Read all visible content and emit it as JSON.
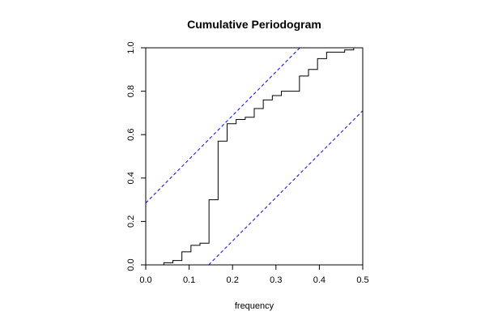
{
  "chart_data": {
    "type": "line",
    "title": "Cumulative Periodogram",
    "xlabel": "frequency",
    "ylabel": "",
    "xlim": [
      0,
      0.5
    ],
    "ylim": [
      0,
      1
    ],
    "x_ticks": [
      "0.0",
      "0.1",
      "0.2",
      "0.3",
      "0.4",
      "0.5"
    ],
    "y_ticks": [
      "0.0",
      "0.2",
      "0.4",
      "0.6",
      "0.8",
      "1.0"
    ],
    "grid": false,
    "legend": "none",
    "series": [
      {
        "style": "step",
        "color": "#000000",
        "x": [
          0.0208,
          0.0417,
          0.0625,
          0.0833,
          0.1042,
          0.125,
          0.1458,
          0.1667,
          0.1875,
          0.2083,
          0.2292,
          0.25,
          0.2708,
          0.2917,
          0.3125,
          0.3333,
          0.3542,
          0.375,
          0.3958,
          0.4167,
          0.4375,
          0.4583,
          0.4792
        ],
        "y": [
          0.0,
          0.01,
          0.02,
          0.06,
          0.09,
          0.1,
          0.3,
          0.57,
          0.65,
          0.67,
          0.68,
          0.72,
          0.76,
          0.78,
          0.8,
          0.8,
          0.87,
          0.9,
          0.95,
          0.98,
          0.98,
          0.99,
          1.0
        ]
      },
      {
        "style": "dashed",
        "color": "#0000ff",
        "x": [
          0.0,
          0.355
        ],
        "y": [
          0.285,
          1.0
        ]
      },
      {
        "style": "dashed",
        "color": "#0000ff",
        "x": [
          0.145,
          0.5
        ],
        "y": [
          0.0,
          0.71
        ]
      }
    ]
  }
}
